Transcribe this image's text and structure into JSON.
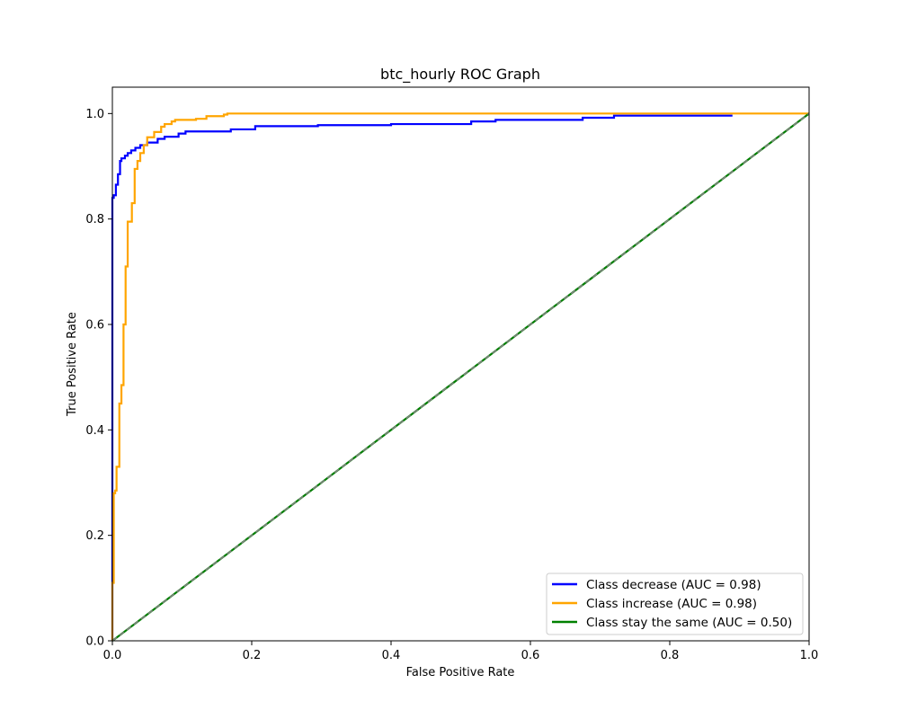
{
  "chart_data": {
    "type": "line",
    "title": "btc_hourly ROC Graph",
    "xlabel": "False Positive Rate",
    "ylabel": "True Positive Rate",
    "xlim": [
      0.0,
      1.0
    ],
    "ylim": [
      0.0,
      1.05
    ],
    "xticks": [
      "0.0",
      "0.2",
      "0.4",
      "0.6",
      "0.8",
      "1.0"
    ],
    "yticks": [
      "0.0",
      "0.2",
      "0.4",
      "0.6",
      "0.8",
      "1.0"
    ],
    "grid": false,
    "legend_position": "lower-right",
    "series": [
      {
        "name": "Class decrease (AUC = 0.98)",
        "color": "#0000ff",
        "x": [
          0.0,
          0.0,
          0.002,
          0.002,
          0.005,
          0.005,
          0.008,
          0.008,
          0.011,
          0.011,
          0.013,
          0.013,
          0.018,
          0.018,
          0.022,
          0.022,
          0.027,
          0.027,
          0.033,
          0.033,
          0.04,
          0.04,
          0.05,
          0.05,
          0.065,
          0.065,
          0.075,
          0.075,
          0.095,
          0.095,
          0.105,
          0.105,
          0.17,
          0.17,
          0.205,
          0.205,
          0.295,
          0.295,
          0.4,
          0.4,
          0.515,
          0.515,
          0.55,
          0.55,
          0.675,
          0.675,
          0.72,
          0.72,
          0.89
        ],
        "y": [
          0.0,
          0.84,
          0.84,
          0.845,
          0.845,
          0.865,
          0.865,
          0.885,
          0.885,
          0.91,
          0.91,
          0.915,
          0.915,
          0.92,
          0.92,
          0.925,
          0.925,
          0.93,
          0.93,
          0.935,
          0.935,
          0.94,
          0.94,
          0.945,
          0.945,
          0.952,
          0.952,
          0.956,
          0.956,
          0.962,
          0.962,
          0.966,
          0.966,
          0.97,
          0.97,
          0.976,
          0.976,
          0.978,
          0.978,
          0.98,
          0.98,
          0.985,
          0.985,
          0.988,
          0.988,
          0.992,
          0.992,
          0.996,
          0.996
        ]
      },
      {
        "name": "Class increase (AUC = 0.98)",
        "color": "#ffa500",
        "x": [
          0.0,
          0.0,
          0.002,
          0.002,
          0.004,
          0.004,
          0.006,
          0.006,
          0.01,
          0.01,
          0.013,
          0.013,
          0.016,
          0.016,
          0.019,
          0.019,
          0.022,
          0.022,
          0.028,
          0.028,
          0.032,
          0.032,
          0.036,
          0.036,
          0.04,
          0.04,
          0.045,
          0.045,
          0.05,
          0.05,
          0.06,
          0.06,
          0.07,
          0.07,
          0.075,
          0.075,
          0.085,
          0.085,
          0.09,
          0.09,
          0.12,
          0.12,
          0.135,
          0.135,
          0.16,
          0.16,
          0.165,
          0.165,
          0.2,
          1.0
        ],
        "y": [
          0.0,
          0.11,
          0.11,
          0.28,
          0.28,
          0.285,
          0.285,
          0.33,
          0.33,
          0.45,
          0.45,
          0.485,
          0.485,
          0.6,
          0.6,
          0.71,
          0.71,
          0.795,
          0.795,
          0.83,
          0.83,
          0.895,
          0.895,
          0.91,
          0.91,
          0.925,
          0.925,
          0.94,
          0.94,
          0.955,
          0.955,
          0.965,
          0.965,
          0.975,
          0.975,
          0.98,
          0.98,
          0.985,
          0.985,
          0.988,
          0.988,
          0.99,
          0.99,
          0.995,
          0.995,
          0.998,
          0.998,
          1.0,
          1.0,
          1.0
        ]
      },
      {
        "name": "Class stay the same (AUC = 0.50)",
        "color": "#008000",
        "x": [
          0.0,
          1.0
        ],
        "y": [
          0.0,
          1.0
        ]
      }
    ],
    "reference_line": {
      "x": [
        0.0,
        1.0
      ],
      "y": [
        0.0,
        1.0
      ],
      "color": "#808080",
      "style": "dashed"
    }
  }
}
